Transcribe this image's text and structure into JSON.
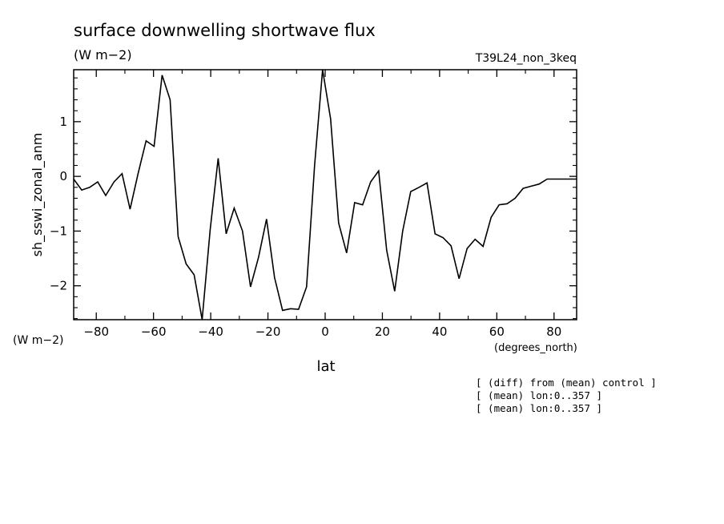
{
  "chart_data": {
    "type": "line",
    "title": "surface downwelling shortwave flux",
    "subtitle": "(W m−2)",
    "run_label": "T39L24_non_3keq",
    "xlabel": "lat",
    "x_units": "(degrees_north)",
    "ylabel": "sh_sswi_zonal_anm",
    "y_units": "(W m−2)",
    "xlim": [
      -87.9,
      87.9
    ],
    "ylim": [
      -2.62,
      1.95
    ],
    "x_ticks": [
      -80,
      -60,
      -40,
      -20,
      0,
      20,
      40,
      60,
      80
    ],
    "x_tick_labels": [
      "−80",
      "−60",
      "−40",
      "−20",
      "0",
      "20",
      "40",
      "60",
      "80"
    ],
    "y_ticks": [
      -2,
      -1,
      0,
      1
    ],
    "y_tick_labels": [
      "−2",
      "−1",
      "0",
      "1"
    ],
    "grid": false,
    "series": [
      {
        "x": [
          -87.9,
          -85.1,
          -82.3,
          -79.5,
          -76.7,
          -73.8,
          -71.0,
          -68.2,
          -65.4,
          -62.6,
          -59.8,
          -57.0,
          -54.2,
          -51.4,
          -48.6,
          -45.8,
          -43.0,
          -40.2,
          -37.4,
          -34.6,
          -31.8,
          -28.9,
          -26.1,
          -23.3,
          -20.5,
          -17.7,
          -14.9,
          -12.1,
          -9.3,
          -6.5,
          -3.7,
          -0.9,
          1.9,
          4.7,
          7.5,
          10.3,
          13.1,
          15.9,
          18.7,
          21.5,
          24.3,
          27.1,
          29.9,
          32.8,
          35.6,
          38.4,
          41.2,
          44.0,
          46.8,
          49.6,
          52.4,
          55.2,
          58.0,
          60.8,
          63.6,
          66.4,
          69.2,
          72.0,
          74.8,
          77.6,
          80.4,
          83.2,
          86.0,
          87.9
        ],
        "y": [
          -0.05,
          -0.25,
          -0.2,
          -0.1,
          -0.35,
          -0.1,
          0.05,
          -0.6,
          0.05,
          0.65,
          0.55,
          1.85,
          1.4,
          -1.1,
          -1.6,
          -1.8,
          -2.62,
          -0.98,
          0.33,
          -1.05,
          -0.58,
          -1.0,
          -2.02,
          -1.48,
          -0.78,
          -1.85,
          -2.45,
          -2.42,
          -2.43,
          -2.02,
          0.2,
          1.95,
          1.05,
          -0.85,
          -1.4,
          -0.48,
          -0.52,
          -0.1,
          0.1,
          -1.35,
          -2.1,
          -1.0,
          -0.28,
          -0.2,
          -0.12,
          -1.05,
          -1.12,
          -1.27,
          -1.87,
          -1.32,
          -1.15,
          -1.28,
          -0.75,
          -0.52,
          -0.5,
          -0.4,
          -0.22,
          -0.18,
          -0.14,
          -0.05,
          -0.05,
          -0.05,
          -0.05,
          -0.05
        ]
      }
    ],
    "footnotes": [
      "[ (diff) from (mean) control ]",
      "[ (mean) lon:0..357 ]",
      "[ (mean) lon:0..357 ]"
    ]
  }
}
